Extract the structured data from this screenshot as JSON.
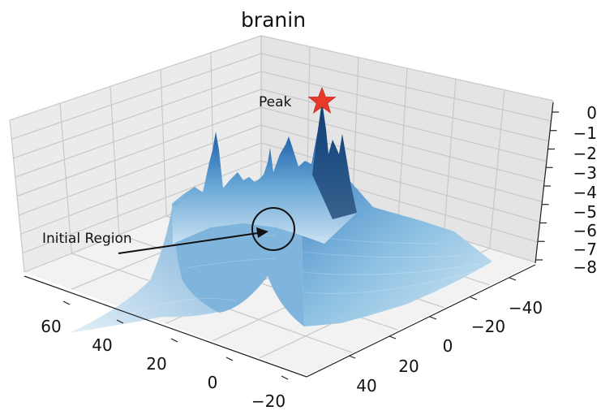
{
  "chart_data": {
    "type": "surface3d",
    "title": "branin",
    "x_ticks": [
      "60",
      "40",
      "20",
      "0",
      "−20"
    ],
    "y_ticks": [
      "40",
      "20",
      "0",
      "−20",
      "−40"
    ],
    "z_ticks": [
      "0",
      "−1",
      "−2",
      "−3",
      "−4",
      "−5",
      "−6",
      "−7",
      "−8"
    ],
    "x_range": [
      -20,
      70
    ],
    "y_range": [
      -50,
      50
    ],
    "z_range": [
      -8,
      0
    ],
    "grid": true,
    "colormap": "Blues",
    "annotations": {
      "peak_label": "Peak",
      "initial_region_label": "Initial Region"
    },
    "colors": {
      "pane_back": "#ebebeb",
      "pane_side": "#e4e4e4",
      "pane_floor": "#f1f1f1",
      "grid": "#c8c8c8",
      "surface_dark": "#1a4f8f",
      "surface_mid": "#3a7fc0",
      "surface_light": "#a9cfe7",
      "peak_marker": "#e8392b"
    }
  }
}
